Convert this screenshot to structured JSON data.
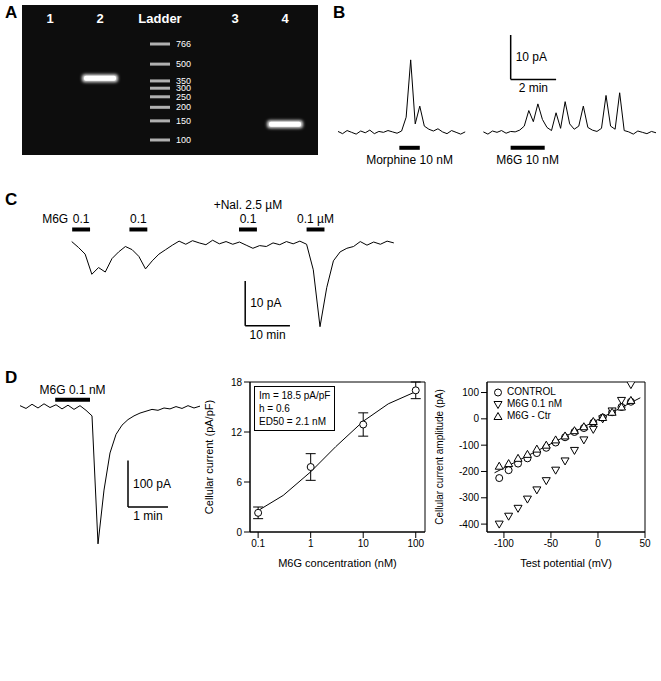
{
  "panel_labels": [
    "A",
    "B",
    "C",
    "D"
  ],
  "gel": {
    "lanes": [
      "1",
      "2",
      "Ladder",
      "3",
      "4"
    ],
    "ladder": {
      "lane": "Ladder",
      "bp": [
        766,
        500,
        350,
        300,
        250,
        200,
        150,
        100
      ]
    },
    "bands": [
      {
        "lane": "2",
        "bp": 370
      },
      {
        "lane": "4",
        "bp": 140
      }
    ]
  },
  "chart_data": [
    {
      "type": "line",
      "tick_labels": false,
      "xlim": [
        0,
        14
      ],
      "ylim": [
        -5,
        22
      ],
      "series": [
        {
          "color": "#000000",
          "x": [
            0,
            0.2,
            0.4,
            0.6,
            0.8,
            1,
            1.2,
            1.4,
            1.6,
            1.8,
            2,
            2.2,
            2.4,
            2.6,
            2.8,
            3,
            3.2,
            3.4,
            3.6,
            3.8,
            4,
            4.2,
            4.4,
            4.6,
            4.8,
            5,
            5.2,
            5.4,
            5.6
          ],
          "values": [
            0.3,
            -0.2,
            0.5,
            0.1,
            -0.3,
            0.4,
            0,
            0.6,
            -0.2,
            0.3,
            0.1,
            0.5,
            0.2,
            -0.1,
            0.4,
            3.5,
            16.4,
            2.0,
            6.0,
            1.5,
            0.8,
            0.4,
            0.9,
            0.2,
            -0.2,
            0.5,
            0.1,
            -0.3,
            0.2
          ]
        },
        {
          "color": "#000000",
          "x": [
            6.4,
            6.6,
            6.8,
            7,
            7.2,
            7.4,
            7.6,
            7.8,
            8,
            8.2,
            8.4,
            8.6,
            8.8,
            9,
            9.2,
            9.4,
            9.6,
            9.8,
            10,
            10.2,
            10.4,
            10.6,
            10.8,
            11,
            11.2,
            11.4,
            11.6,
            11.8,
            12,
            12.2,
            12.4,
            12.6,
            12.8,
            13,
            13.2,
            13.4,
            13.6,
            13.8,
            14
          ],
          "values": [
            0.2,
            -0.3,
            0.4,
            0.1,
            0.5,
            -0.1,
            0.3,
            0.2,
            0.6,
            1.5,
            5.0,
            2.5,
            6.5,
            3.0,
            1.2,
            0.5,
            4.5,
            1.0,
            7.0,
            2.0,
            0.8,
            1.5,
            6.0,
            1.2,
            0.6,
            0.3,
            1.0,
            8.4,
            1.5,
            0.8,
            9.0,
            0.5,
            0.2,
            -0.3,
            0.4,
            0.1,
            -0.2,
            0.3,
            0
          ]
        }
      ],
      "annotations": [
        {
          "text": "Morphine 10 nM",
          "x": [
            2.7,
            3.6
          ]
        },
        {
          "text": "M6G 10 nM",
          "x": [
            7.6,
            9.1
          ]
        }
      ],
      "scale_bar": {
        "x": 2,
        "x_label": "2 min",
        "y": 10,
        "y_label": "10 pA"
      }
    },
    {
      "type": "line",
      "tick_labels": false,
      "xlim": [
        0,
        76
      ],
      "ylim": [
        -21,
        4
      ],
      "series": [
        {
          "color": "#000000",
          "x": [
            1.5,
            3,
            4.5,
            6,
            7.5,
            9,
            10.5,
            12,
            13.5,
            15,
            16.5,
            18,
            19.5,
            21,
            22.5,
            24,
            25.5,
            27,
            28.5,
            30,
            31.5,
            33,
            34.5,
            36,
            37.5,
            39,
            40.5,
            42,
            43.5,
            45,
            46.5,
            48,
            49.5,
            51,
            52.5,
            54,
            55.5,
            57,
            58.5,
            60,
            61.5,
            63,
            64.5,
            66,
            67.5,
            69,
            70.5,
            72,
            73.5
          ],
          "values": [
            0.3,
            -1.0,
            -2.5,
            -7.0,
            -5.5,
            -6.5,
            -3.5,
            -2.0,
            -0.8,
            -1.5,
            -3.0,
            -5.8,
            -4.0,
            -2.5,
            -1.5,
            -0.5,
            0.4,
            -0.3,
            0.5,
            0,
            -0.4,
            0.6,
            -0.2,
            0.3,
            -0.3,
            0.2,
            -0.5,
            -1.2,
            -0.6,
            -0.8,
            0,
            -0.4,
            0.3,
            -0.2,
            0.4,
            -0.3,
            -6.0,
            -18.7,
            -10.0,
            -4.0,
            -2.0,
            -1.2,
            -0.8,
            0.3,
            -0.5,
            0.2,
            -0.3,
            0.4,
            0
          ]
        }
      ],
      "annotations": [
        {
          "text": "M6G"
        },
        {
          "text": "0.1",
          "x": [
            1.6,
            5.6
          ]
        },
        {
          "text": "0.1",
          "x": [
            14.4,
            18.4
          ]
        },
        {
          "text": "+Nal. 2.5 µM"
        },
        {
          "text": "0.1",
          "x": [
            38.9,
            42.9
          ]
        },
        {
          "text": "0.1 µM",
          "x": [
            54,
            58
          ]
        }
      ],
      "scale_bar": {
        "x": 10,
        "x_label": "10 min",
        "y": 10,
        "y_label": "10 pA"
      }
    },
    {
      "type": "line",
      "tick_labels": false,
      "xlim": [
        0,
        4.5
      ],
      "ylim": [
        -320,
        25
      ],
      "series": [
        {
          "color": "#000000",
          "x": [
            0,
            0.15,
            0.3,
            0.45,
            0.6,
            0.75,
            0.9,
            1.05,
            1.2,
            1.35,
            1.5,
            1.65,
            1.8,
            1.95,
            2.1,
            2.25,
            2.4,
            2.55,
            2.7,
            2.85,
            3,
            3.15,
            3.3,
            3.45,
            3.6,
            3.75,
            3.9,
            4.05,
            4.2,
            4.35,
            4.5
          ],
          "values": [
            2,
            -4,
            5,
            -3,
            6,
            -2,
            4,
            -5,
            3,
            -6,
            2,
            -8,
            -20,
            -296,
            -180,
            -100,
            -60,
            -40,
            -28,
            -20,
            -14,
            -10,
            -6,
            -8,
            -3,
            -5,
            0,
            -4,
            2,
            -3,
            1
          ]
        }
      ],
      "annotations": [
        {
          "text": "M6G 0.1 nM",
          "x": [
            0.88,
            1.75
          ]
        }
      ],
      "scale_bar": {
        "x": 1,
        "x_label": "1 min",
        "y": 100,
        "y_label": "100 pA"
      }
    },
    {
      "type": "scatter",
      "log": "x",
      "xlim": [
        0.07,
        150
      ],
      "ylim": [
        0,
        18
      ],
      "xticks": [
        0.1,
        1,
        10,
        100
      ],
      "yticks": [
        0,
        6,
        12,
        18
      ],
      "x_label": "M6G concentration (nM)",
      "y_label": "Cellular current (pA/pF)",
      "x": [
        0.1,
        1,
        10,
        100
      ],
      "values": [
        2.3,
        7.8,
        12.9,
        17.0
      ],
      "errors": [
        0.7,
        1.6,
        1.4,
        1.0
      ],
      "marker": "circle",
      "color": "#000000",
      "fit": {
        "x": [
          0.1,
          0.3,
          1,
          3,
          10,
          30,
          100
        ],
        "values": [
          2.57,
          4.39,
          7.22,
          10.24,
          13.29,
          15.38,
          16.84
        ]
      },
      "annotations": [
        "Im = 18.5 pA/pF",
        "h = 0.6",
        "ED50 = 2.1 nM"
      ]
    },
    {
      "type": "scatter",
      "xlim": [
        -118,
        50
      ],
      "ylim": [
        -430,
        140
      ],
      "xticks": [
        -100,
        -50,
        0,
        50
      ],
      "yticks": [
        -400,
        -300,
        -200,
        -100,
        0,
        100
      ],
      "x_label": "Test potential (mV)",
      "y_label": "Cellular current amplitude (pA)",
      "legend": "upper left",
      "x": [
        -105,
        -95,
        -85,
        -75,
        -65,
        -55,
        -45,
        -35,
        -25,
        -15,
        -5,
        5,
        15,
        25,
        35
      ],
      "series": [
        {
          "name": "CONTROL",
          "marker": "circle",
          "color": "#000000",
          "values": [
            -225,
            -195,
            -170,
            -150,
            -130,
            -110,
            -90,
            -70,
            -50,
            -35,
            -15,
            5,
            25,
            45,
            65
          ]
        },
        {
          "name": "M6G 0.1 nM",
          "marker": "triangle-down",
          "color": "#000000",
          "values": [
            -400,
            -370,
            -340,
            -305,
            -270,
            -235,
            -195,
            -160,
            -120,
            -80,
            -40,
            0,
            30,
            70,
            130
          ]
        },
        {
          "name": "M6G - Ctr",
          "marker": "triangle-up",
          "color": "#000000",
          "values": [
            -180,
            -170,
            -150,
            -135,
            -115,
            -100,
            -80,
            -65,
            -45,
            -30,
            -10,
            5,
            25,
            45,
            70
          ]
        }
      ],
      "fit": {
        "x": [
          -110,
          45
        ],
        "values": [
          -205,
          80
        ]
      }
    }
  ]
}
